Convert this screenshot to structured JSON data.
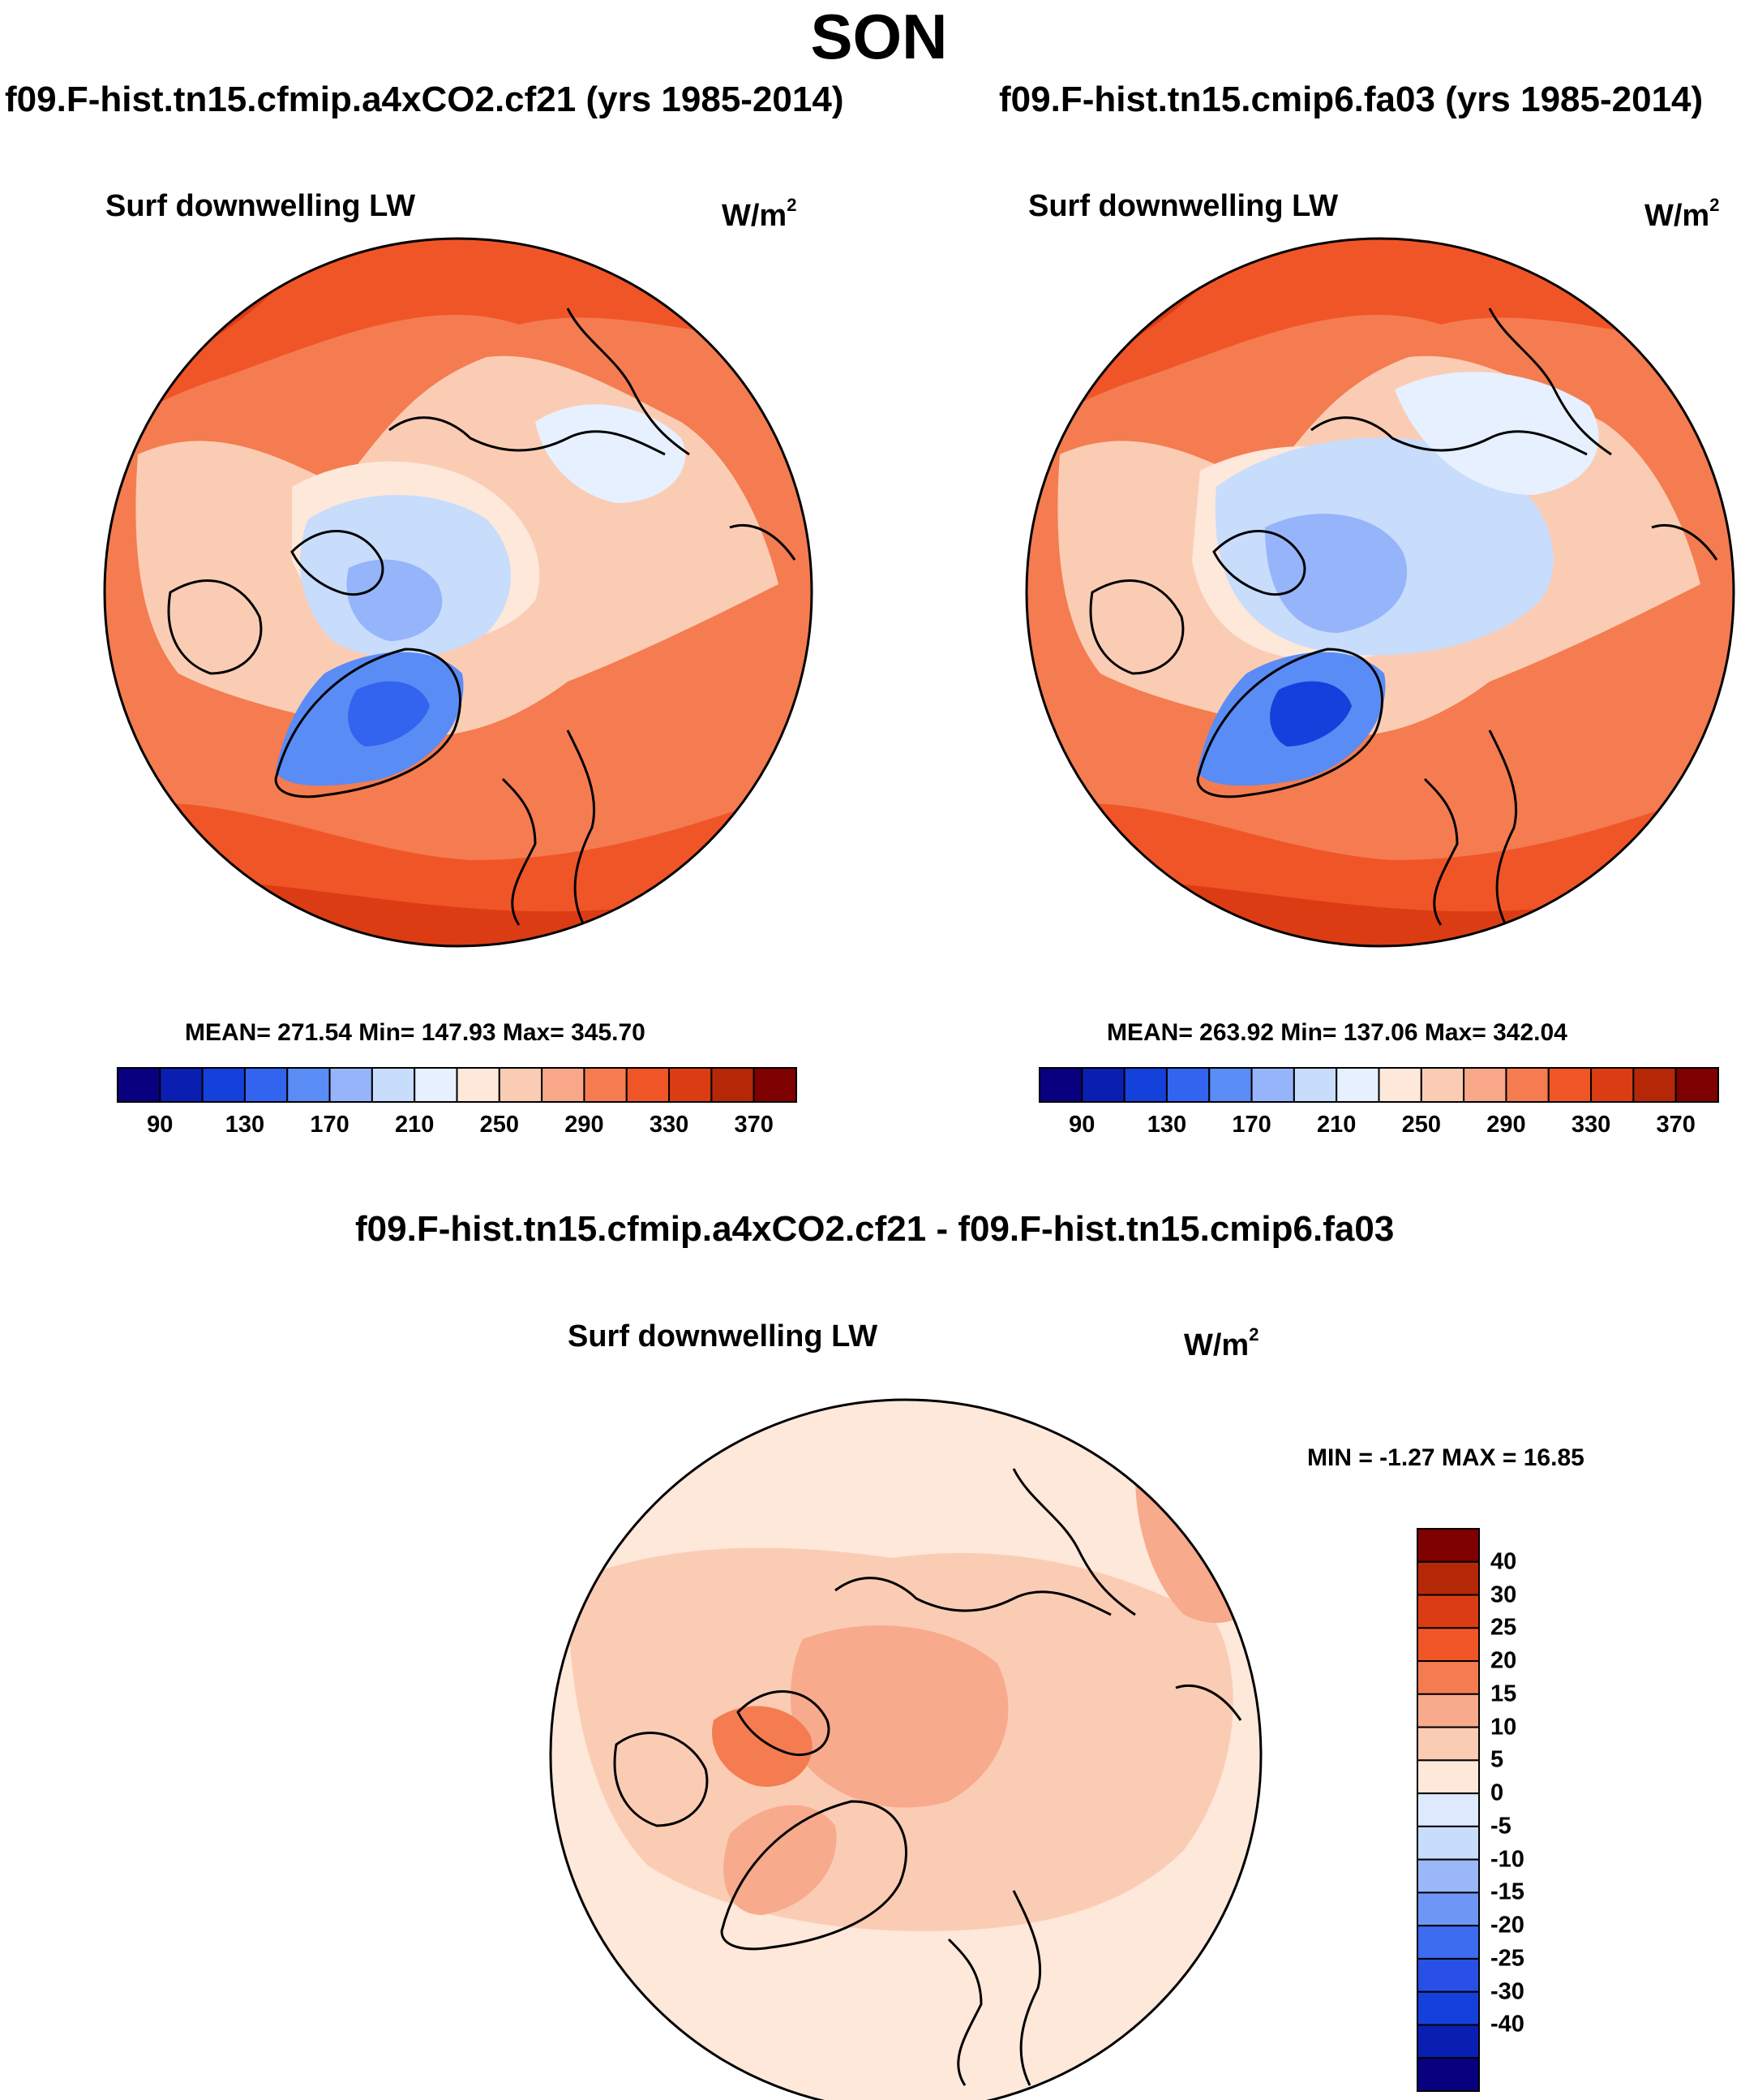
{
  "figure": {
    "season": "SON",
    "variable_label": "Surf downwelling LW",
    "units_base": "W/m",
    "units_exponent": "2"
  },
  "colors": {
    "abs_scale": [
      "#08007f",
      "#0a1fb2",
      "#1440dc",
      "#3264f0",
      "#5a8cf5",
      "#96b4fa",
      "#c8dcfc",
      "#e6f0fe",
      "#fde8da",
      "#fbccb4",
      "#f8a888",
      "#f47c50",
      "#f05528",
      "#dc3c14",
      "#b42808",
      "#7f0000"
    ],
    "diff_scale": [
      "#08007f",
      "#0a1fb2",
      "#1440dc",
      "#2850e6",
      "#3c6cf0",
      "#6e96f5",
      "#9ab8f8",
      "#c8dcfb",
      "#ddeafd",
      "#fde8da",
      "#fbccb4",
      "#f8aa8c",
      "#f47c50",
      "#f05528",
      "#dc3c14",
      "#b42808",
      "#7f0000"
    ],
    "ocean_warm": "#e8501e",
    "coast": "#000000"
  },
  "chart_data": [
    {
      "type": "heatmap",
      "name": "polar-map",
      "title": "f09.F-hist.tn15.cfmip.a4xCO2.cf21 (yrs 1985-2014)",
      "subtitle": "Surf downwelling LW",
      "units": "W/m2",
      "projection": "north-polar-stereographic",
      "stats": {
        "mean": 271.54,
        "min": 147.93,
        "max": 345.7
      },
      "stats_text": "MEAN= 271.54  Min= 147.93  Max= 345.70",
      "contour_levels": [
        90,
        110,
        130,
        150,
        170,
        190,
        210,
        230,
        250,
        270,
        290,
        310,
        330,
        350,
        370
      ],
      "colorbar_labels": [
        "90",
        "130",
        "170",
        "210",
        "250",
        "290",
        "330",
        "370"
      ]
    },
    {
      "type": "heatmap",
      "name": "polar-map",
      "title": "f09.F-hist.tn15.cmip6.fa03 (yrs 1985-2014)",
      "subtitle": "Surf downwelling LW",
      "units": "W/m2",
      "projection": "north-polar-stereographic",
      "stats": {
        "mean": 263.92,
        "min": 137.06,
        "max": 342.04
      },
      "stats_text": "MEAN= 263.92  Min= 137.06  Max= 342.04",
      "contour_levels": [
        90,
        110,
        130,
        150,
        170,
        190,
        210,
        230,
        250,
        270,
        290,
        310,
        330,
        350,
        370
      ],
      "colorbar_labels": [
        "90",
        "130",
        "170",
        "210",
        "250",
        "290",
        "330",
        "370"
      ]
    },
    {
      "type": "heatmap",
      "name": "polar-map-difference",
      "title": "f09.F-hist.tn15.cfmip.a4xCO2.cf21 - f09.F-hist.tn15.cmip6.fa03",
      "subtitle": "Surf downwelling LW",
      "units": "W/m2",
      "projection": "north-polar-stereographic",
      "stats": {
        "min": -1.27,
        "max": 16.85
      },
      "stats_text": "MIN =  -1.27 MAX =  16.85",
      "contour_levels": [
        -40,
        -30,
        -25,
        -20,
        -15,
        -10,
        -5,
        0,
        5,
        10,
        15,
        20,
        25,
        30,
        40
      ],
      "colorbar_labels": [
        "40",
        "30",
        "25",
        "20",
        "15",
        "10",
        "5",
        "0",
        "-5",
        "-10",
        "-15",
        "-20",
        "-25",
        "-30",
        "-40"
      ]
    }
  ]
}
